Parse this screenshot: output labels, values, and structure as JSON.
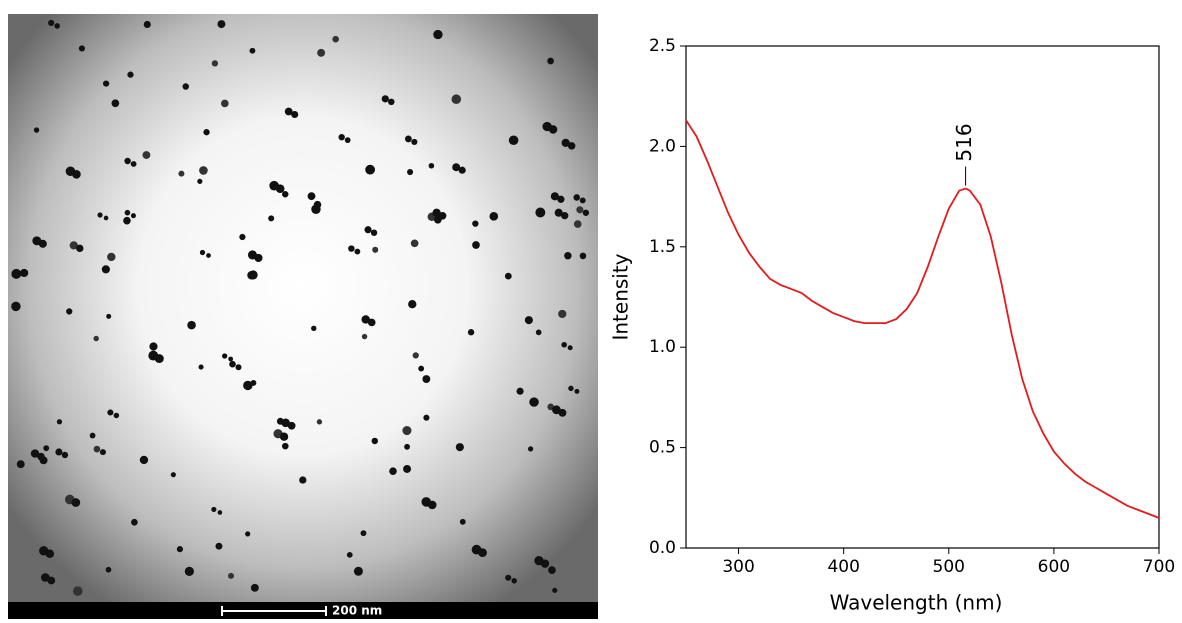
{
  "image": {
    "scale_bar": "200 nm"
  },
  "chart_data": {
    "type": "line",
    "xlabel": "Wavelength (nm)",
    "ylabel": "Intensity",
    "xlim": [
      250,
      700
    ],
    "ylim": [
      0,
      2.5
    ],
    "xticks": [
      300,
      400,
      500,
      600,
      700
    ],
    "yticks": [
      {
        "value": 0,
        "label": "0.0"
      },
      0.5,
      {
        "value": 1,
        "label": "1.0"
      },
      1.5,
      {
        "value": 2,
        "label": "2.0"
      },
      2.5
    ],
    "annotation": {
      "label": "516",
      "x": 516,
      "y": 1.79
    },
    "series": [
      {
        "color": "#e41a1c",
        "x": [
          250,
          260,
          270,
          280,
          290,
          300,
          310,
          320,
          330,
          340,
          350,
          360,
          370,
          380,
          390,
          400,
          410,
          420,
          430,
          440,
          450,
          460,
          470,
          480,
          490,
          500,
          510,
          516,
          520,
          530,
          540,
          550,
          560,
          570,
          580,
          590,
          600,
          610,
          620,
          630,
          640,
          650,
          660,
          670,
          680,
          690,
          700
        ],
        "values": [
          2.13,
          2.05,
          1.93,
          1.8,
          1.67,
          1.56,
          1.47,
          1.4,
          1.34,
          1.31,
          1.29,
          1.27,
          1.23,
          1.2,
          1.17,
          1.15,
          1.13,
          1.12,
          1.12,
          1.12,
          1.14,
          1.19,
          1.27,
          1.4,
          1.55,
          1.69,
          1.78,
          1.79,
          1.78,
          1.71,
          1.55,
          1.32,
          1.06,
          0.84,
          0.68,
          0.57,
          0.48,
          0.42,
          0.37,
          0.33,
          0.3,
          0.27,
          0.24,
          0.21,
          0.19,
          0.17,
          0.15
        ]
      }
    ]
  }
}
